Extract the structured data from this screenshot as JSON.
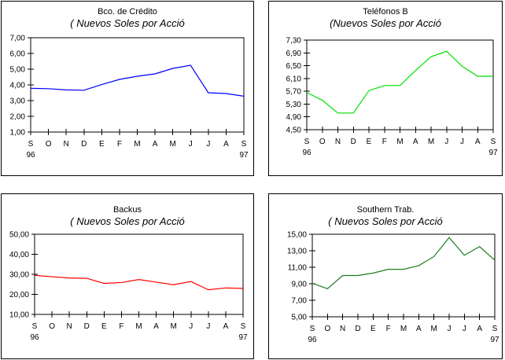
{
  "page": {
    "background": "#ffffff",
    "border_color": "#000000"
  },
  "chart_data": [
    {
      "type": "line",
      "title": "Bco. de Crédito",
      "subtitle": "( Nuevos Soles por Acció",
      "categories": [
        "S",
        "O",
        "N",
        "D",
        "E",
        "F",
        "M",
        "A",
        "M",
        "J",
        "J",
        "A",
        "S"
      ],
      "x_year_labels": {
        "first": "96",
        "last": "97"
      },
      "series": [
        {
          "name": "Bco. de Crédito",
          "color": "#0000FF",
          "values": [
            3.78,
            3.76,
            3.68,
            3.66,
            4.02,
            4.35,
            4.55,
            4.7,
            5.05,
            5.25,
            3.5,
            3.45,
            3.28
          ]
        }
      ],
      "ylim": [
        1.0,
        7.0
      ],
      "yticks": [
        7,
        6,
        5,
        4,
        3,
        2,
        1
      ],
      "ytick_labels": [
        "7,00",
        "6,00",
        "5,00",
        "4,00",
        "3,00",
        "2,00",
        "1,00"
      ],
      "xlabel": "",
      "ylabel": "",
      "grid": false,
      "legend": "none"
    },
    {
      "type": "line",
      "title": "Teléfonos B",
      "subtitle": "(Nuevos Soles por Acció",
      "categories": [
        "S",
        "O",
        "N",
        "D",
        "E",
        "F",
        "M",
        "A",
        "M",
        "J",
        "J",
        "A",
        "S"
      ],
      "x_year_labels": {
        "first": "96",
        "last": "97"
      },
      "series": [
        {
          "name": "Teléfonos B",
          "color": "#00E000",
          "values": [
            5.66,
            5.42,
            5.02,
            5.02,
            5.72,
            5.88,
            5.88,
            6.35,
            6.78,
            6.95,
            6.48,
            6.17,
            6.17
          ]
        }
      ],
      "ylim": [
        4.5,
        7.3
      ],
      "yticks": [
        7.3,
        6.9,
        6.5,
        6.1,
        5.7,
        5.3,
        4.9,
        4.5
      ],
      "ytick_labels": [
        "7,30",
        "6,90",
        "6,50",
        "6,10",
        "5,70",
        "5,30",
        "4,90",
        "4,50"
      ],
      "xlabel": "",
      "ylabel": "",
      "grid": false,
      "legend": "none"
    },
    {
      "type": "line",
      "title": "Backus",
      "subtitle": "( Nuevos Soles por Acció",
      "categories": [
        "S",
        "O",
        "N",
        "D",
        "E",
        "F",
        "M",
        "A",
        "M",
        "J",
        "J",
        "A",
        "S"
      ],
      "x_year_labels": {
        "first": "96",
        "last": "97"
      },
      "series": [
        {
          "name": "Backus",
          "color": "#FF0000",
          "values": [
            29.5,
            28.8,
            28.2,
            28.0,
            25.5,
            25.9,
            27.4,
            26.1,
            24.8,
            26.4,
            22.3,
            23.2,
            23.0
          ]
        }
      ],
      "ylim": [
        10.0,
        50.0
      ],
      "yticks": [
        50,
        40,
        30,
        20,
        10
      ],
      "ytick_labels": [
        "50,00",
        "40,00",
        "30,00",
        "20,00",
        "10,00"
      ],
      "xlabel": "",
      "ylabel": "",
      "grid": false,
      "legend": "none"
    },
    {
      "type": "line",
      "title": "Southern Trab.",
      "subtitle": "( Nuevos Soles por Acció",
      "categories": [
        "S",
        "O",
        "N",
        "D",
        "E",
        "F",
        "M",
        "A",
        "M",
        "J",
        "J",
        "A",
        "S"
      ],
      "x_year_labels": {
        "first": "96",
        "last": "97"
      },
      "series": [
        {
          "name": "Southern Trab.",
          "color": "#1E7D1E",
          "values": [
            9.05,
            8.4,
            10.0,
            10.0,
            10.3,
            10.75,
            10.75,
            11.2,
            12.3,
            14.6,
            12.45,
            13.5,
            11.85
          ]
        }
      ],
      "ylim": [
        5.0,
        15.0
      ],
      "yticks": [
        15,
        13,
        11,
        9,
        7,
        5
      ],
      "ytick_labels": [
        "15,00",
        "13,00",
        "11,00",
        "9,00",
        "7,00",
        "5,00"
      ],
      "xlabel": "",
      "ylabel": "",
      "grid": false,
      "legend": "none"
    }
  ]
}
